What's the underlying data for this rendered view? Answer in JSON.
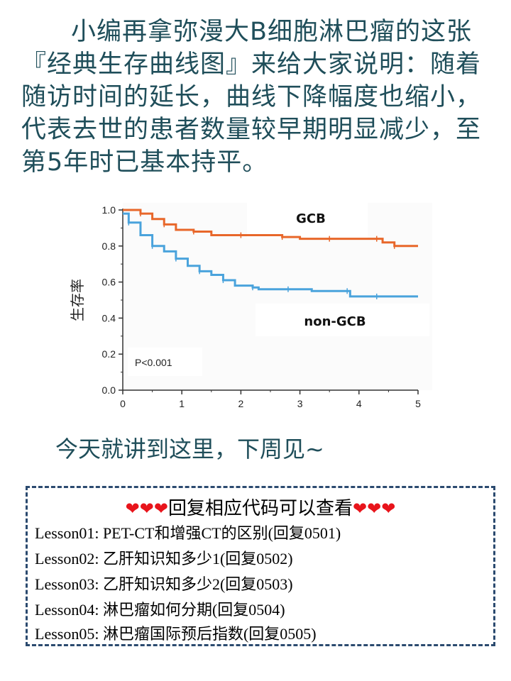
{
  "intro_text": "小编再拿弥漫大B细胞淋巴瘤的这张『经典生存曲线图』来给大家说明：随着随访时间的延长，曲线下降幅度也缩小，代表去世的患者数量较早期明显减少，至第5年时已基本持平。",
  "outro_text": "今天就讲到这里，下周见~",
  "colors": {
    "text_teal": "#1f4e5a",
    "gcb": "#e8672a",
    "non_gcb": "#4aa3dc",
    "heart": "#e8141b",
    "box_border": "#2b4a6f"
  },
  "chart_data": {
    "type": "line",
    "ylabel": "生存率",
    "xlabel": "",
    "xlim": [
      0,
      5
    ],
    "ylim": [
      0,
      1.0
    ],
    "x_ticks": [
      "0",
      "1",
      "2",
      "3",
      "4",
      "5"
    ],
    "y_ticks": [
      "0.0",
      "0.2",
      "0.4",
      "0.6",
      "0.8",
      "1.0"
    ],
    "annotation": "P<0.001",
    "grid": false,
    "series": [
      {
        "name": "GCB",
        "color": "#e8672a",
        "points": [
          [
            0,
            1.0
          ],
          [
            0.3,
            0.98
          ],
          [
            0.5,
            0.95
          ],
          [
            0.7,
            0.92
          ],
          [
            0.9,
            0.89
          ],
          [
            1.2,
            0.88
          ],
          [
            1.5,
            0.86
          ],
          [
            2.0,
            0.86
          ],
          [
            2.3,
            0.86
          ],
          [
            2.7,
            0.85
          ],
          [
            3.0,
            0.84
          ],
          [
            3.5,
            0.84
          ],
          [
            3.8,
            0.84
          ],
          [
            4.3,
            0.84
          ],
          [
            4.4,
            0.82
          ],
          [
            4.6,
            0.8
          ],
          [
            5.0,
            0.8
          ]
        ]
      },
      {
        "name": "non-GCB",
        "color": "#4aa3dc",
        "points": [
          [
            0,
            0.98
          ],
          [
            0.1,
            0.93
          ],
          [
            0.3,
            0.86
          ],
          [
            0.5,
            0.8
          ],
          [
            0.7,
            0.77
          ],
          [
            0.9,
            0.73
          ],
          [
            1.1,
            0.69
          ],
          [
            1.3,
            0.66
          ],
          [
            1.5,
            0.64
          ],
          [
            1.7,
            0.61
          ],
          [
            1.9,
            0.58
          ],
          [
            2.2,
            0.57
          ],
          [
            2.3,
            0.56
          ],
          [
            2.8,
            0.56
          ],
          [
            3.2,
            0.55
          ],
          [
            3.8,
            0.55
          ],
          [
            3.85,
            0.52
          ],
          [
            4.3,
            0.52
          ],
          [
            5.0,
            0.52
          ]
        ]
      }
    ]
  },
  "lessons_header": "回复相应代码可以查看",
  "hearts": "❤❤❤",
  "lessons": [
    "Lesson01: PET-CT和增强CT的区别(回复0501)",
    "Lesson02: 乙肝知识知多少1(回复0502)",
    "Lesson03: 乙肝知识知多少2(回复0503)",
    "Lesson04: 淋巴瘤如何分期(回复0504)",
    "Lesson05: 淋巴瘤国际预后指数(回复0505)"
  ]
}
